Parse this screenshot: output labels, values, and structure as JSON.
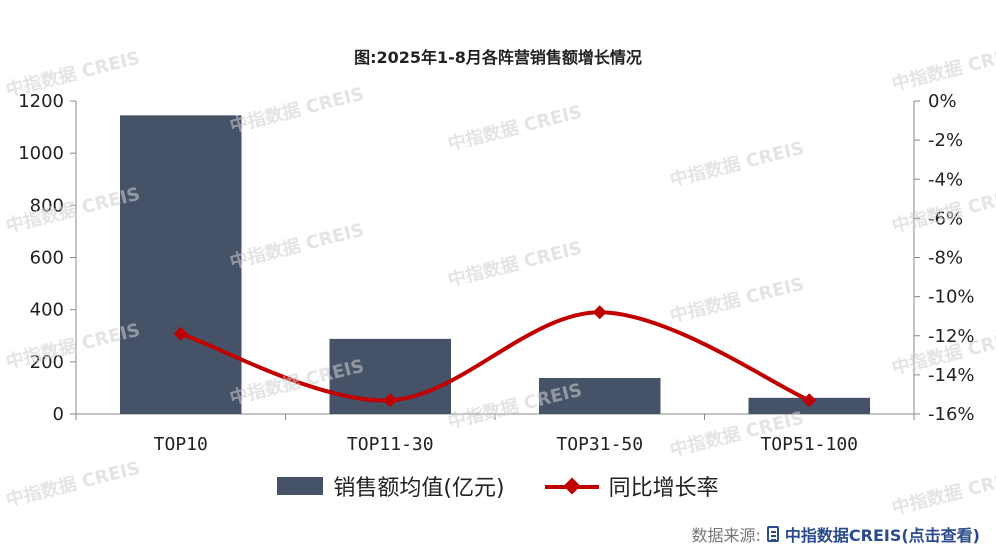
{
  "watermark_text": "中指数据 CREIS",
  "source": {
    "label": "数据来源:",
    "link_text": "中指数据CREIS(点击查看)",
    "icon": "document-icon"
  },
  "colors": {
    "bar": "#455267",
    "line": "#c00000",
    "axis": "#888888"
  },
  "legend": {
    "bar_label": "销售额均值(亿元)",
    "line_label": "同比增长率"
  },
  "chart_data": {
    "type": "bar",
    "title": "图:2025年1-8月各阵营销售额增长情况",
    "categories": [
      "TOP10",
      "TOP11-30",
      "TOP31-50",
      "TOP51-100"
    ],
    "series": [
      {
        "name": "销售额均值(亿元)",
        "type": "bar",
        "axis": "left",
        "values": [
          1145,
          288,
          138,
          62
        ]
      },
      {
        "name": "同比增长率",
        "type": "line",
        "axis": "right",
        "smooth": true,
        "marker": "diamond",
        "values": [
          -11.9,
          -15.3,
          -10.8,
          -15.3
        ]
      }
    ],
    "y_left": {
      "ylim": [
        0,
        1200
      ],
      "ticks": [
        0,
        200,
        400,
        600,
        800,
        1000,
        1200
      ],
      "tick_labels": [
        "0",
        "200",
        "400",
        "600",
        "800",
        "1000",
        "1200"
      ]
    },
    "y_right": {
      "ylim": [
        -16,
        0
      ],
      "ticks": [
        0,
        -2,
        -4,
        -6,
        -8,
        -10,
        -12,
        -14,
        -16
      ],
      "tick_labels": [
        "0%",
        "-2%",
        "-4%",
        "-6%",
        "-8%",
        "-10%",
        "-12%",
        "-14%",
        "-16%"
      ]
    },
    "grid": false,
    "legend_position": "bottom"
  }
}
